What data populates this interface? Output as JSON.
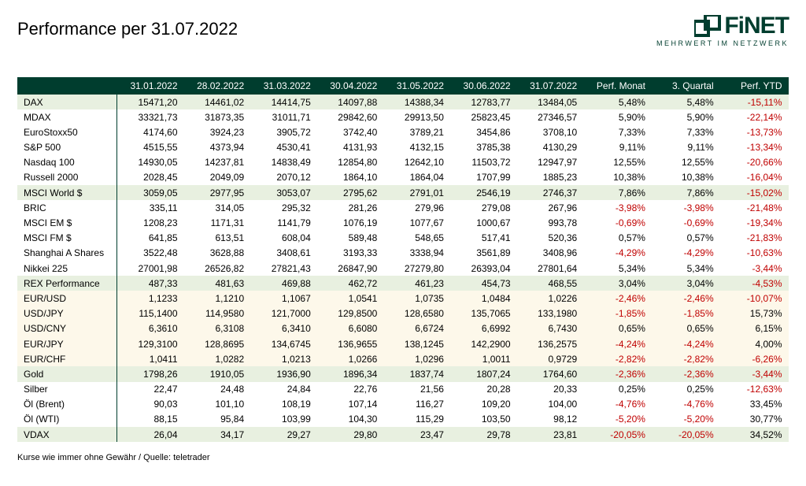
{
  "title": "Performance per 31.07.2022",
  "logo": {
    "name": "FiNET",
    "tagline": "MEHRWERT IM NETZWERK",
    "color": "#003d2e"
  },
  "footnote": "Kurse wie immer ohne Gewähr / Quelle: teletrader",
  "colors": {
    "header_bg": "#003d2e",
    "header_text": "#ffffff",
    "alt_row_green": "#e8f0e0",
    "cream_row": "#fdf8ea",
    "negative": "#c00000",
    "positive": "#000000",
    "background": "#ffffff"
  },
  "columns": [
    "",
    "31.01.2022",
    "28.02.2022",
    "31.03.2022",
    "30.04.2022",
    "31.05.2022",
    "30.06.2022",
    "31.07.2022",
    "Perf. Monat",
    "3. Quartal",
    "Perf. YTD"
  ],
  "rows": [
    {
      "label": "DAX",
      "style": "alt-green",
      "vals": [
        "15471,20",
        "14461,02",
        "14414,75",
        "14097,88",
        "14388,34",
        "12783,77",
        "13484,05"
      ],
      "perf": [
        "5,48%",
        "5,48%",
        "-15,11%"
      ]
    },
    {
      "label": "MDAX",
      "style": "",
      "vals": [
        "33321,73",
        "31873,35",
        "31011,71",
        "29842,60",
        "29913,50",
        "25823,45",
        "27346,57"
      ],
      "perf": [
        "5,90%",
        "5,90%",
        "-22,14%"
      ]
    },
    {
      "label": "EuroStoxx50",
      "style": "",
      "vals": [
        "4174,60",
        "3924,23",
        "3905,72",
        "3742,40",
        "3789,21",
        "3454,86",
        "3708,10"
      ],
      "perf": [
        "7,33%",
        "7,33%",
        "-13,73%"
      ]
    },
    {
      "label": "S&P 500",
      "style": "",
      "vals": [
        "4515,55",
        "4373,94",
        "4530,41",
        "4131,93",
        "4132,15",
        "3785,38",
        "4130,29"
      ],
      "perf": [
        "9,11%",
        "9,11%",
        "-13,34%"
      ]
    },
    {
      "label": "Nasdaq 100",
      "style": "",
      "vals": [
        "14930,05",
        "14237,81",
        "14838,49",
        "12854,80",
        "12642,10",
        "11503,72",
        "12947,97"
      ],
      "perf": [
        "12,55%",
        "12,55%",
        "-20,66%"
      ]
    },
    {
      "label": "Russell 2000",
      "style": "",
      "vals": [
        "2028,45",
        "2049,09",
        "2070,12",
        "1864,10",
        "1864,04",
        "1707,99",
        "1885,23"
      ],
      "perf": [
        "10,38%",
        "10,38%",
        "-16,04%"
      ]
    },
    {
      "label": "MSCI World $",
      "style": "alt-green",
      "vals": [
        "3059,05",
        "2977,95",
        "3053,07",
        "2795,62",
        "2791,01",
        "2546,19",
        "2746,37"
      ],
      "perf": [
        "7,86%",
        "7,86%",
        "-15,02%"
      ]
    },
    {
      "label": "BRIC",
      "style": "",
      "vals": [
        "335,11",
        "314,05",
        "295,32",
        "281,26",
        "279,96",
        "279,08",
        "267,96"
      ],
      "perf": [
        "-3,98%",
        "-3,98%",
        "-21,48%"
      ]
    },
    {
      "label": "MSCI EM $",
      "style": "",
      "vals": [
        "1208,23",
        "1171,31",
        "1141,79",
        "1076,19",
        "1077,67",
        "1000,67",
        "993,78"
      ],
      "perf": [
        "-0,69%",
        "-0,69%",
        "-19,34%"
      ]
    },
    {
      "label": "MSCI FM $",
      "style": "",
      "vals": [
        "641,85",
        "613,51",
        "608,04",
        "589,48",
        "548,65",
        "517,41",
        "520,36"
      ],
      "perf": [
        "0,57%",
        "0,57%",
        "-21,83%"
      ]
    },
    {
      "label": "Shanghai A Shares",
      "style": "",
      "vals": [
        "3522,48",
        "3628,88",
        "3408,61",
        "3193,33",
        "3338,94",
        "3561,89",
        "3408,96"
      ],
      "perf": [
        "-4,29%",
        "-4,29%",
        "-10,63%"
      ]
    },
    {
      "label": "Nikkei 225",
      "style": "",
      "vals": [
        "27001,98",
        "26526,82",
        "27821,43",
        "26847,90",
        "27279,80",
        "26393,04",
        "27801,64"
      ],
      "perf": [
        "5,34%",
        "5,34%",
        "-3,44%"
      ]
    },
    {
      "label": "REX Performance",
      "style": "alt-green",
      "vals": [
        "487,33",
        "481,63",
        "469,88",
        "462,72",
        "461,23",
        "454,73",
        "468,55"
      ],
      "perf": [
        "3,04%",
        "3,04%",
        "-4,53%"
      ]
    },
    {
      "label": "EUR/USD",
      "style": "cream",
      "vals": [
        "1,1233",
        "1,1210",
        "1,1067",
        "1,0541",
        "1,0735",
        "1,0484",
        "1,0226"
      ],
      "perf": [
        "-2,46%",
        "-2,46%",
        "-10,07%"
      ]
    },
    {
      "label": "USD/JPY",
      "style": "cream",
      "vals": [
        "115,1400",
        "114,9580",
        "121,7000",
        "129,8500",
        "128,6580",
        "135,7065",
        "133,1980"
      ],
      "perf": [
        "-1,85%",
        "-1,85%",
        "15,73%"
      ]
    },
    {
      "label": "USD/CNY",
      "style": "cream",
      "vals": [
        "6,3610",
        "6,3108",
        "6,3410",
        "6,6080",
        "6,6724",
        "6,6992",
        "6,7430"
      ],
      "perf": [
        "0,65%",
        "0,65%",
        "6,15%"
      ]
    },
    {
      "label": "EUR/JPY",
      "style": "cream",
      "vals": [
        "129,3100",
        "128,8695",
        "134,6745",
        "136,9655",
        "138,1245",
        "142,2900",
        "136,2575"
      ],
      "perf": [
        "-4,24%",
        "-4,24%",
        "4,00%"
      ]
    },
    {
      "label": "EUR/CHF",
      "style": "cream",
      "vals": [
        "1,0411",
        "1,0282",
        "1,0213",
        "1,0266",
        "1,0296",
        "1,0011",
        "0,9729"
      ],
      "perf": [
        "-2,82%",
        "-2,82%",
        "-6,26%"
      ]
    },
    {
      "label": "Gold",
      "style": "alt-green",
      "vals": [
        "1798,26",
        "1910,05",
        "1936,90",
        "1896,34",
        "1837,74",
        "1807,24",
        "1764,60"
      ],
      "perf": [
        "-2,36%",
        "-2,36%",
        "-3,44%"
      ]
    },
    {
      "label": "Silber",
      "style": "",
      "vals": [
        "22,47",
        "24,48",
        "24,84",
        "22,76",
        "21,56",
        "20,28",
        "20,33"
      ],
      "perf": [
        "0,25%",
        "0,25%",
        "-12,63%"
      ]
    },
    {
      "label": "Öl (Brent)",
      "style": "",
      "vals": [
        "90,03",
        "101,10",
        "108,19",
        "107,14",
        "116,27",
        "109,20",
        "104,00"
      ],
      "perf": [
        "-4,76%",
        "-4,76%",
        "33,45%"
      ]
    },
    {
      "label": "Öl (WTI)",
      "style": "",
      "vals": [
        "88,15",
        "95,84",
        "103,99",
        "104,30",
        "115,29",
        "103,50",
        "98,12"
      ],
      "perf": [
        "-5,20%",
        "-5,20%",
        "30,77%"
      ]
    },
    {
      "label": "VDAX",
      "style": "alt-green",
      "vals": [
        "26,04",
        "34,17",
        "29,27",
        "29,80",
        "23,47",
        "29,78",
        "23,81"
      ],
      "perf": [
        "-20,05%",
        "-20,05%",
        "34,52%"
      ]
    }
  ]
}
